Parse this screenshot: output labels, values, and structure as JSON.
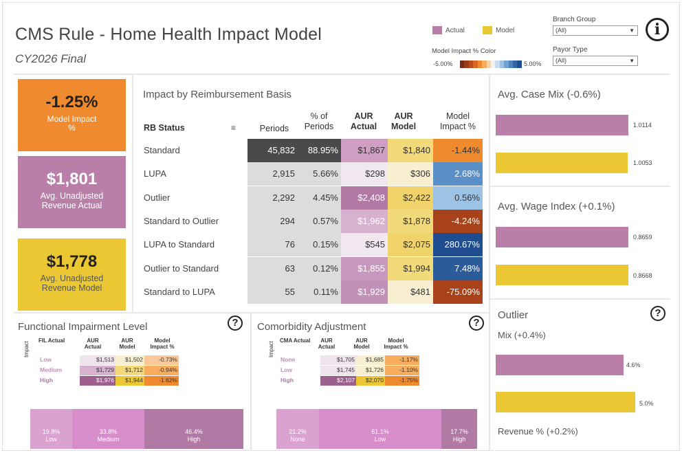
{
  "header": {
    "title": "CMS Rule - Home Health Impact Model",
    "subtitle": "CY2026 Final",
    "legend": [
      {
        "label": "Actual",
        "color": "#b97fa9"
      },
      {
        "label": "Model",
        "color": "#ecc734"
      }
    ],
    "impact_color_label": "Model Impact % Color",
    "impact_color_min": "-5.00%",
    "impact_color_max": "5.00%",
    "branch_group_label": "Branch Group",
    "branch_group_value": "(All)",
    "payor_type_label": "Payor Type",
    "payor_type_value": "(All)",
    "info_icon": "info-icon"
  },
  "kpis": {
    "model_impact_value": "-1.25%",
    "model_impact_label": "Model Impact %",
    "revenue_actual_value": "$1,801",
    "revenue_actual_label": "Avg. Unadjusted Revenue Actual",
    "revenue_model_value": "$1,778",
    "revenue_model_label": "Avg. Unadjusted Revenue Model"
  },
  "rb_table": {
    "title": "Impact by Reimbursement Basis",
    "headers": {
      "status": "RB Status",
      "periods": "Periods",
      "pct_periods": "% of Periods",
      "aur_actual": "AUR Actual",
      "aur_model": "AUR Model",
      "impact": "Model Impact %"
    },
    "rows": [
      {
        "status": "Standard",
        "periods": "45,832",
        "pct": "88.95%",
        "actual": "$1,867",
        "model": "$1,840",
        "impact": "-1.44%"
      },
      {
        "status": "LUPA",
        "periods": "2,915",
        "pct": "5.66%",
        "actual": "$298",
        "model": "$306",
        "impact": "2.68%"
      },
      {
        "status": "Outlier",
        "periods": "2,292",
        "pct": "4.45%",
        "actual": "$2,408",
        "model": "$2,422",
        "impact": "0.56%"
      },
      {
        "status": "Standard to Outlier",
        "periods": "294",
        "pct": "0.57%",
        "actual": "$1,962",
        "model": "$1,878",
        "impact": "-4.24%"
      },
      {
        "status": "LUPA to Standard",
        "periods": "76",
        "pct": "0.15%",
        "actual": "$545",
        "model": "$2,075",
        "impact": "280.67%"
      },
      {
        "status": "Outlier to Standard",
        "periods": "63",
        "pct": "0.12%",
        "actual": "$1,855",
        "model": "$1,994",
        "impact": "7.48%"
      },
      {
        "status": "Standard to LUPA",
        "periods": "55",
        "pct": "0.11%",
        "actual": "$1,929",
        "model": "$481",
        "impact": "-75.09%"
      }
    ]
  },
  "case_mix": {
    "title": "Avg. Case Mix (-0.6%)",
    "actual": "1.0114",
    "model": "1.0053"
  },
  "wage_index": {
    "title": "Avg. Wage Index (+0.1%)",
    "actual": "0.8659",
    "model": "0.8668"
  },
  "outlier": {
    "title": "Outlier",
    "mix_label": "Mix (+0.4%)",
    "actual": "4.6%",
    "model": "5.0%",
    "revenue_label": "Revenue % (+0.2%)"
  },
  "fil": {
    "title": "Functional Impairment Level",
    "side_label": "Impact",
    "headers": {
      "col0": "FIL Actual",
      "col1": "AUR Actual",
      "col2": "AUR Model",
      "col3": "Model Impact %"
    },
    "rows": [
      {
        "label": "Low",
        "actual": "$1,513",
        "model": "$1,502",
        "impact": "-0.73%"
      },
      {
        "label": "Medium",
        "actual": "$1,729",
        "model": "$1,712",
        "impact": "-0.94%"
      },
      {
        "label": "High",
        "actual": "$1,976",
        "model": "$1,944",
        "impact": "-1.62%"
      }
    ],
    "segments": [
      {
        "pct": "19.8%",
        "label": "Low"
      },
      {
        "pct": "33.8%",
        "label": "Medium"
      },
      {
        "pct": "46.4%",
        "label": "High"
      }
    ]
  },
  "cma": {
    "title": "Comorbidity Adjustment",
    "side_label": "Impact",
    "headers": {
      "col0": "CMA Actual",
      "col1": "AUR Actual",
      "col2": "AUR Model",
      "col3": "Model Impact %"
    },
    "rows": [
      {
        "label": "None",
        "actual": "$1,705",
        "model": "$1,685",
        "impact": "-1.17%"
      },
      {
        "label": "Low",
        "actual": "$1,745",
        "model": "$1,726",
        "impact": "-1.10%"
      },
      {
        "label": "High",
        "actual": "$2,107",
        "model": "$2,070",
        "impact": "-1.75%"
      }
    ],
    "segments": [
      {
        "pct": "21.2%",
        "label": "None"
      },
      {
        "pct": "61.1%",
        "label": "Low"
      },
      {
        "pct": "17.7%",
        "label": "High"
      }
    ]
  }
}
